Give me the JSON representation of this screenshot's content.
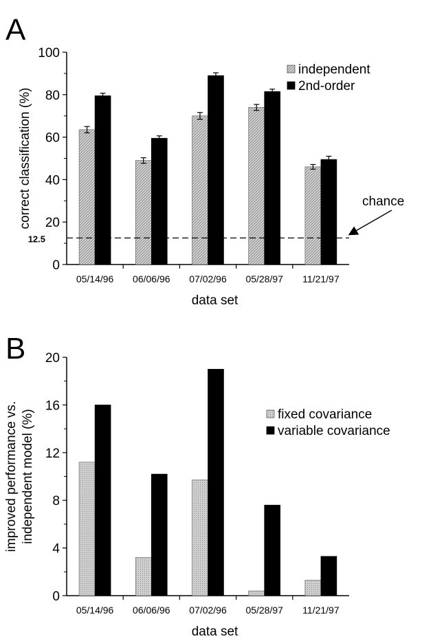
{
  "chart_data": [
    {
      "panel": "A",
      "type": "bar",
      "categories": [
        "05/14/96",
        "06/06/96",
        "07/02/96",
        "05/28/97",
        "11/21/97"
      ],
      "series": [
        {
          "name": "independent",
          "values": [
            63.5,
            49,
            70,
            74,
            46
          ],
          "errors": [
            1.5,
            1.3,
            1.6,
            1.4,
            1.1
          ]
        },
        {
          "name": "2nd-order",
          "values": [
            79.5,
            59.5,
            89,
            81.5,
            49.5
          ],
          "errors": [
            1.2,
            1.1,
            1.3,
            1.1,
            1.5
          ]
        }
      ],
      "xlabel": "data set",
      "ylabel": "correct classification (%)",
      "ylim": [
        0,
        100
      ],
      "yticks": [
        0,
        20,
        40,
        60,
        80,
        100
      ],
      "reference_line": {
        "value": 12.5,
        "label": "12.5",
        "annotation": "chance",
        "style": "dashed"
      },
      "legend": "top-right",
      "colors": {
        "independent": "#bdbdbd",
        "2nd-order": "#000000"
      }
    },
    {
      "panel": "B",
      "type": "bar",
      "categories": [
        "05/14/96",
        "06/06/96",
        "07/02/96",
        "05/28/97",
        "11/21/97"
      ],
      "series": [
        {
          "name": "fixed covariance",
          "values": [
            11.2,
            3.2,
            9.7,
            0.4,
            1.3
          ]
        },
        {
          "name": "variable covariance",
          "values": [
            16,
            10.2,
            19,
            7.6,
            3.3
          ]
        }
      ],
      "xlabel": "data set",
      "ylabel": [
        "improved performance vs.",
        "independent model (%)"
      ],
      "ylim": [
        0,
        20
      ],
      "yticks": [
        0,
        4,
        8,
        12,
        16,
        20
      ],
      "legend": "right",
      "colors": {
        "fixed covariance": "#bdbdbd",
        "variable covariance": "#000000"
      }
    }
  ]
}
